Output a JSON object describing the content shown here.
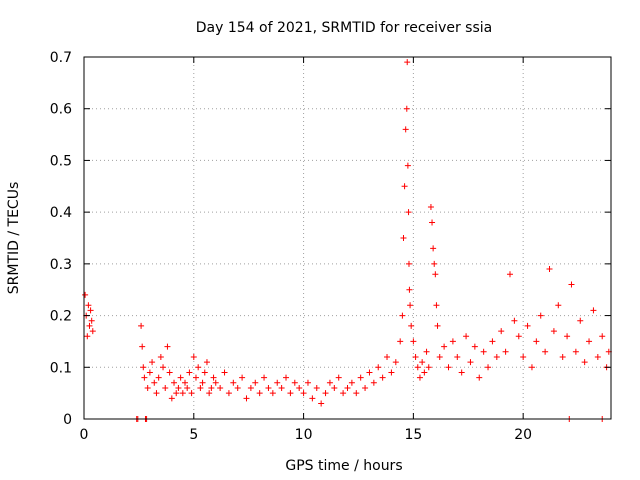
{
  "chart_data": {
    "type": "scatter",
    "title": "Day 154 of 2021, SRMTID for receiver ssia",
    "xlabel": "GPS time / hours",
    "ylabel": "SRMTID / TECUs",
    "xlim": [
      0,
      24
    ],
    "ylim": [
      0,
      0.7
    ],
    "xticks": [
      0,
      5,
      10,
      15,
      20
    ],
    "yticks": [
      0,
      0.1,
      0.2,
      0.3,
      0.4,
      0.5,
      0.6,
      0.7
    ],
    "grid": true,
    "marker": "+",
    "series_color": "#ff0000",
    "series": [
      {
        "name": "SRMTID",
        "x": [
          0.05,
          0.1,
          0.15,
          0.2,
          0.25,
          0.3,
          0.35,
          0.4,
          2.4,
          2.45,
          2.8,
          2.85,
          2.6,
          2.65,
          2.7,
          2.75,
          2.9,
          3.0,
          3.1,
          3.2,
          3.3,
          3.4,
          3.5,
          3.6,
          3.7,
          3.8,
          3.9,
          4.0,
          4.1,
          4.2,
          4.3,
          4.4,
          4.5,
          4.6,
          4.7,
          4.8,
          4.9,
          5.0,
          5.1,
          5.2,
          5.3,
          5.4,
          5.5,
          5.6,
          5.7,
          5.8,
          5.9,
          6.0,
          6.2,
          6.4,
          6.6,
          6.8,
          7.0,
          7.2,
          7.4,
          7.6,
          7.8,
          8.0,
          8.2,
          8.4,
          8.6,
          8.8,
          9.0,
          9.2,
          9.4,
          9.6,
          9.8,
          10.0,
          10.2,
          10.4,
          10.6,
          10.8,
          11.0,
          11.2,
          11.4,
          11.6,
          11.8,
          12.0,
          12.2,
          12.4,
          12.6,
          12.8,
          13.0,
          13.2,
          13.4,
          13.6,
          13.8,
          14.0,
          14.2,
          14.4,
          14.5,
          14.55,
          14.6,
          14.65,
          14.7,
          14.72,
          14.75,
          14.78,
          14.8,
          14.82,
          14.85,
          14.9,
          15.0,
          15.1,
          15.2,
          15.3,
          15.4,
          15.5,
          15.6,
          15.7,
          15.8,
          15.85,
          15.9,
          15.95,
          16.0,
          16.05,
          16.1,
          16.2,
          16.4,
          16.6,
          16.8,
          17.0,
          17.2,
          17.4,
          17.6,
          17.8,
          18.0,
          18.2,
          18.4,
          18.6,
          18.8,
          19.0,
          19.2,
          19.4,
          19.6,
          19.8,
          20.0,
          20.2,
          20.4,
          20.6,
          20.8,
          21.0,
          21.2,
          21.4,
          21.6,
          21.8,
          22.0,
          22.2,
          22.4,
          22.6,
          22.8,
          23.0,
          23.2,
          23.4,
          23.6,
          23.8,
          23.9,
          22.1,
          23.6
        ],
        "y": [
          0.24,
          0.2,
          0.16,
          0.22,
          0.18,
          0.21,
          0.19,
          0.17,
          0.0,
          0.0,
          0.0,
          0.0,
          0.18,
          0.14,
          0.1,
          0.08,
          0.06,
          0.09,
          0.11,
          0.07,
          0.05,
          0.08,
          0.12,
          0.1,
          0.06,
          0.14,
          0.09,
          0.04,
          0.07,
          0.05,
          0.06,
          0.08,
          0.05,
          0.07,
          0.06,
          0.09,
          0.05,
          0.12,
          0.08,
          0.1,
          0.06,
          0.07,
          0.09,
          0.11,
          0.05,
          0.06,
          0.08,
          0.07,
          0.06,
          0.09,
          0.05,
          0.07,
          0.06,
          0.08,
          0.04,
          0.06,
          0.07,
          0.05,
          0.08,
          0.06,
          0.05,
          0.07,
          0.06,
          0.08,
          0.05,
          0.07,
          0.06,
          0.05,
          0.07,
          0.04,
          0.06,
          0.03,
          0.05,
          0.07,
          0.06,
          0.08,
          0.05,
          0.06,
          0.07,
          0.05,
          0.08,
          0.06,
          0.09,
          0.07,
          0.1,
          0.08,
          0.12,
          0.09,
          0.11,
          0.15,
          0.2,
          0.35,
          0.45,
          0.56,
          0.6,
          0.69,
          0.49,
          0.4,
          0.3,
          0.25,
          0.22,
          0.18,
          0.15,
          0.12,
          0.1,
          0.08,
          0.11,
          0.09,
          0.13,
          0.1,
          0.41,
          0.38,
          0.33,
          0.3,
          0.28,
          0.22,
          0.18,
          0.12,
          0.14,
          0.1,
          0.15,
          0.12,
          0.09,
          0.16,
          0.11,
          0.14,
          0.08,
          0.13,
          0.1,
          0.15,
          0.12,
          0.17,
          0.13,
          0.28,
          0.19,
          0.16,
          0.12,
          0.18,
          0.1,
          0.15,
          0.2,
          0.13,
          0.29,
          0.17,
          0.22,
          0.12,
          0.16,
          0.26,
          0.13,
          0.19,
          0.11,
          0.15,
          0.21,
          0.12,
          0.16,
          0.1,
          0.13,
          0.0,
          0.0
        ]
      }
    ]
  }
}
